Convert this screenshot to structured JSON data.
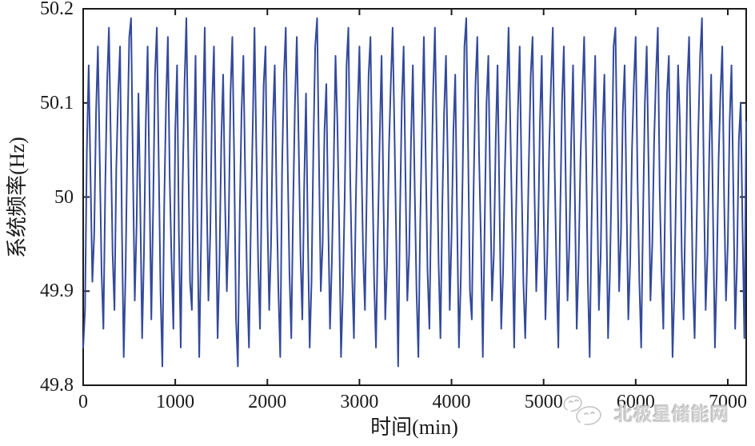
{
  "figure": {
    "background": "#ffffff"
  },
  "chart_data": {
    "type": "line",
    "title": "",
    "xlabel": "时间(min)",
    "ylabel": "系统频率(Hz)",
    "x_range": [
      0,
      7200
    ],
    "y_range": [
      49.8,
      50.2
    ],
    "x_ticks": [
      0,
      1000,
      2000,
      3000,
      4000,
      5000,
      6000,
      7000
    ],
    "x_tick_labels": [
      "0",
      "1000",
      "2000",
      "3000",
      "4000",
      "5000",
      "6000",
      "7000"
    ],
    "y_ticks": [
      49.8,
      49.9,
      50,
      50.1,
      50.2
    ],
    "y_tick_labels": [
      "49.8",
      "49.9",
      "50",
      "50.1",
      "50.2"
    ],
    "grid": false,
    "legend": null,
    "line_color": "#33499b",
    "axis_color": "#1a1a1a",
    "series": [
      {
        "name": "系统频率",
        "unit": "Hz",
        "x_start": 0,
        "x_step": 20,
        "values": [
          49.84,
          49.88,
          50.05,
          50.14,
          50.02,
          49.91,
          49.96,
          50.09,
          50.16,
          50.04,
          49.92,
          49.86,
          50.01,
          50.12,
          50.18,
          50.06,
          49.94,
          49.88,
          50.03,
          50.11,
          50.16,
          49.97,
          49.83,
          49.92,
          50.06,
          50.17,
          50.19,
          50.03,
          49.89,
          49.97,
          50.11,
          49.99,
          49.85,
          49.94,
          50.08,
          50.16,
          50.01,
          49.87,
          49.99,
          50.13,
          50.18,
          50.04,
          49.9,
          49.82,
          49.99,
          50.1,
          50.17,
          50.02,
          49.93,
          49.86,
          50.07,
          50.14,
          49.96,
          49.84,
          50.01,
          50.12,
          50.19,
          50.05,
          49.91,
          49.88,
          50.04,
          50.15,
          49.97,
          49.83,
          49.95,
          50.08,
          50.18,
          50.01,
          49.89,
          49.96,
          50.1,
          50.16,
          49.99,
          49.85,
          49.93,
          50.06,
          50.13,
          50.0,
          49.9,
          49.97,
          50.11,
          50.17,
          50.04,
          49.87,
          49.82,
          49.98,
          50.09,
          50.15,
          50.02,
          49.91,
          49.84,
          49.97,
          50.07,
          50.18,
          50.05,
          49.93,
          49.86,
          50.02,
          50.12,
          50.16,
          49.98,
          49.88,
          49.95,
          50.08,
          50.14,
          50.0,
          49.9,
          49.83,
          50.03,
          50.13,
          50.18,
          50.04,
          49.92,
          49.85,
          49.99,
          50.1,
          50.17,
          50.06,
          49.94,
          49.87,
          50.01,
          50.11,
          49.96,
          49.84,
          49.91,
          50.05,
          50.16,
          50.19,
          50.04,
          49.9,
          49.95,
          50.07,
          50.12,
          49.98,
          49.86,
          49.93,
          50.03,
          50.15,
          50.08,
          49.97,
          49.83,
          49.9,
          50.0,
          50.14,
          50.18,
          50.02,
          49.92,
          49.85,
          49.99,
          50.09,
          50.16,
          50.05,
          49.94,
          49.88,
          50.01,
          50.13,
          50.17,
          50.03,
          49.91,
          49.84,
          49.96,
          50.06,
          50.15,
          50.0,
          49.87,
          49.93,
          50.05,
          50.12,
          50.18,
          50.07,
          49.95,
          49.82,
          49.98,
          50.1,
          50.16,
          50.02,
          49.89,
          49.94,
          50.06,
          50.14,
          50.01,
          49.9,
          49.83,
          49.97,
          50.08,
          50.17,
          50.04,
          49.92,
          49.86,
          50.0,
          50.11,
          50.18,
          50.06,
          49.93,
          49.85,
          49.99,
          50.09,
          50.15,
          50.03,
          49.88,
          49.96,
          50.07,
          50.13,
          49.98,
          49.84,
          49.91,
          50.02,
          50.16,
          50.19,
          50.05,
          49.9,
          49.87,
          50.01,
          50.12,
          50.17,
          50.04,
          49.95,
          49.83,
          49.97,
          50.1,
          50.15,
          50.01,
          49.89,
          49.94,
          50.06,
          50.14,
          50.0,
          49.86,
          49.92,
          50.03,
          50.11,
          50.18,
          50.07,
          49.96,
          49.84,
          49.98,
          50.09,
          50.16,
          50.02,
          49.91,
          49.85,
          49.93,
          50.04,
          50.13,
          50.17,
          50.01,
          49.9,
          49.96,
          50.08,
          50.15,
          49.99,
          49.87,
          49.94,
          50.05,
          50.12,
          50.18,
          50.03,
          49.92,
          49.84,
          49.98,
          50.1,
          50.16,
          50.02,
          49.89,
          49.95,
          50.06,
          50.14,
          50.0,
          49.86,
          49.93,
          50.04,
          50.11,
          50.17,
          50.05,
          49.91,
          49.83,
          49.97,
          50.08,
          50.15,
          50.01,
          49.88,
          49.94,
          50.07,
          50.13,
          49.99,
          49.85,
          49.92,
          50.03,
          50.16,
          50.18,
          50.04,
          49.9,
          49.96,
          50.09,
          50.14,
          50.0,
          49.87,
          49.93,
          50.05,
          50.12,
          50.17,
          50.02,
          49.91,
          49.84,
          49.98,
          50.1,
          50.16,
          50.03,
          49.89,
          49.95,
          50.06,
          50.13,
          50.18,
          50.01,
          49.92,
          49.86,
          50.0,
          50.11,
          50.15,
          49.97,
          49.83,
          49.9,
          50.02,
          50.14,
          50.08,
          49.94,
          49.87,
          49.99,
          50.12,
          50.17,
          50.04,
          49.91,
          49.85,
          49.96,
          50.07,
          50.15,
          50.19,
          50.02,
          49.88,
          49.94,
          50.05,
          50.13,
          49.98,
          49.84,
          49.92,
          50.04,
          50.11,
          50.16,
          50.0,
          49.89,
          49.95,
          50.08,
          50.14,
          50.01,
          49.86,
          49.93,
          50.06,
          50.1,
          49.97,
          49.85,
          50.08
        ]
      }
    ]
  },
  "watermark": {
    "text": "北极星储能网",
    "logo": "chat-bubbles-logo",
    "color": "#c2c2c2"
  }
}
